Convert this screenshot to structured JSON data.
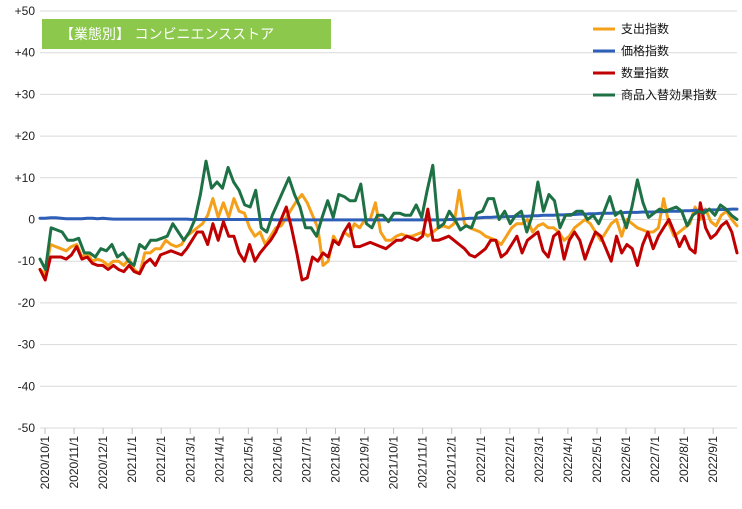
{
  "chart_data": {
    "type": "line",
    "title": "【業態別】 コンビニエンスストア",
    "ylim": [
      -50,
      50
    ],
    "ytick_labels": [
      "+50",
      "+40",
      "+30",
      "+20",
      "+10",
      "0",
      "-10",
      "-20",
      "-30",
      "-40",
      "-50"
    ],
    "ytick_values": [
      50,
      40,
      30,
      20,
      10,
      0,
      -10,
      -20,
      -30,
      -40,
      -50
    ],
    "xtick_labels": [
      "2020/10/1",
      "2020/11/1",
      "2020/12/1",
      "2021/1/1",
      "2021/2/1",
      "2021/3/1",
      "2021/4/1",
      "2021/5/1",
      "2021/6/1",
      "2021/7/1",
      "2021/8/1",
      "2021/9/1",
      "2021/10/1",
      "2021/11/1",
      "2021/12/1",
      "2022/1/1",
      "2022/2/1",
      "2022/3/1",
      "2022/4/1",
      "2022/5/1",
      "2022/6/1",
      "2022/7/1",
      "2022/8/1",
      "2022/9/1"
    ],
    "grid": true,
    "legend": "top-right",
    "series": [
      {
        "name": "支出指数",
        "color": "#f5a01a",
        "values": [
          -12,
          -13,
          -6,
          -6.5,
          -7,
          -7.5,
          -6.5,
          -6,
          -9,
          -8,
          -10,
          -9.5,
          -10,
          -11,
          -10,
          -10,
          -11,
          -9.5,
          -12,
          -13,
          -8,
          -8,
          -7,
          -7,
          -5,
          -6,
          -6.5,
          -6,
          -4,
          -3,
          -2,
          -1,
          1,
          5,
          0.5,
          4,
          0.5,
          5,
          2,
          1.5,
          -2,
          -4,
          -3,
          -6,
          -4,
          -2,
          -1.5,
          0.5,
          2.5,
          4.5,
          6,
          4,
          1,
          -2,
          -11,
          -10,
          -4,
          -6,
          -3,
          -4,
          -1,
          -2,
          0,
          0,
          4,
          -3,
          -5,
          -5,
          -4,
          -3.5,
          -4,
          -4,
          -3.5,
          -3,
          -4,
          -3,
          -2,
          -1.5,
          -2,
          -1,
          7,
          -1,
          -2,
          -2.5,
          -3,
          -4,
          -4.5,
          -5,
          -6,
          -4,
          -2,
          -1,
          -1,
          0,
          -3,
          -1.5,
          -1,
          -2,
          -2,
          -3,
          -5,
          -4,
          -2,
          -1,
          0,
          -1,
          -3,
          -5,
          -3,
          -1,
          0,
          -4,
          0,
          -1,
          -2,
          -2.5,
          -3,
          -3,
          -2,
          5,
          -1,
          -4,
          -3,
          -2,
          -1,
          3,
          0,
          2.5,
          -0.5,
          -1.5,
          1,
          2,
          0,
          -1.5
        ],
        "line_width": 3
      },
      {
        "name": "価格指数",
        "color": "#2e5fb8",
        "values": [
          0.3,
          0.3,
          0.4,
          0.4,
          0.3,
          0.2,
          0.2,
          0.2,
          0.2,
          0.3,
          0.3,
          0.2,
          0.3,
          0.2,
          0.1,
          0.1,
          0.1,
          0.1,
          0.1,
          0.1,
          0.1,
          0.1,
          0.1,
          0.1,
          0.1,
          0.1,
          0.1,
          0.1,
          0.1,
          0,
          0,
          0,
          0,
          0,
          0,
          0,
          0,
          0,
          0,
          0,
          0,
          0,
          0,
          0,
          0,
          -0.1,
          -0.1,
          -0.1,
          -0.1,
          -0.1,
          -0.1,
          -0.1,
          -0.1,
          -0.1,
          -0.1,
          -0.1,
          -0.1,
          -0.1,
          -0.1,
          -0.1,
          -0.1,
          -0.1,
          -0.1,
          -0.1,
          -0.1,
          -0.1,
          -0.1,
          -0.1,
          -0.1,
          -0.1,
          -0.1,
          -0.1,
          -0.1,
          -0.1,
          -0.1,
          -0.1,
          -0.1,
          -0.1,
          0,
          0,
          0.1,
          0.2,
          0.3,
          0.3,
          0.4,
          0.5,
          0.5,
          0.6,
          0.6,
          0.7,
          0.7,
          0.8,
          0.8,
          0.8,
          0.9,
          0.9,
          1,
          1,
          1,
          1.1,
          1.1,
          1.2,
          1.2,
          1.3,
          1.3,
          1.4,
          1.4,
          1.5,
          1.5,
          1.5,
          1.6,
          1.6,
          1.7,
          1.7,
          1.7,
          1.8,
          1.8,
          1.8,
          1.9,
          1.9,
          2,
          2,
          2,
          2.1,
          2.1,
          2.2,
          2.2,
          2.2,
          2.3,
          2.3,
          2.4,
          2.4,
          2.5,
          2.5
        ],
        "line_width": 3
      },
      {
        "name": "数量指数",
        "color": "#c00000",
        "values": [
          -12,
          -14.5,
          -9,
          -9,
          -9,
          -9.5,
          -8.5,
          -6.5,
          -9.5,
          -9,
          -10.5,
          -11,
          -11,
          -12,
          -11,
          -12,
          -12.5,
          -11,
          -12.5,
          -13,
          -10.5,
          -9.5,
          -11,
          -8.5,
          -8,
          -7.5,
          -8,
          -8.5,
          -7,
          -5,
          -3,
          -3,
          -6,
          -1,
          -5,
          -0.5,
          -4,
          -4,
          -8,
          -10,
          -6,
          -10,
          -8,
          -6.5,
          -5,
          -3,
          0,
          3,
          -2,
          -8,
          -14.5,
          -14,
          -9,
          -10,
          -8,
          -9,
          -5,
          -6,
          -3,
          -1,
          -6.5,
          -6.5,
          -6,
          -5.5,
          -6,
          -6.5,
          -7,
          -6,
          -5,
          -5,
          -4,
          -4.5,
          -5,
          -4,
          2.5,
          -5,
          -5,
          -4.5,
          -4,
          -5,
          -6,
          -7,
          -8.5,
          -9,
          -8,
          -7,
          -5,
          -5,
          -9,
          -8,
          -6,
          -4,
          -8,
          -5,
          -4,
          -3,
          -7.5,
          -9,
          -4,
          -3,
          -9.5,
          -5,
          -3,
          -5,
          -9.5,
          -6,
          -3,
          -4,
          -7,
          -10,
          -4,
          -8,
          -6,
          -7,
          -11,
          -6,
          -3,
          -7,
          -4,
          -2,
          0,
          -3,
          -6.5,
          -4,
          -7,
          -8,
          4,
          -2,
          -4.5,
          -3.5,
          -1.5,
          -0.5,
          -3,
          -8
        ],
        "line_width": 3
      },
      {
        "name": "商品入替効果指数",
        "color": "#1e7145",
        "values": [
          -9.5,
          -12,
          -2,
          -2.5,
          -3,
          -5,
          -5,
          -4.5,
          -8,
          -8,
          -9,
          -7,
          -7.5,
          -6,
          -9,
          -8,
          -10,
          -11,
          -6,
          -7,
          -5,
          -5,
          -4.5,
          -4,
          -1,
          -3,
          -5,
          -3,
          0,
          6,
          14,
          7.5,
          9,
          7.5,
          12.5,
          9,
          7,
          3.5,
          3,
          7,
          -2,
          -3,
          1,
          4,
          7,
          10,
          6,
          3,
          -2,
          -2,
          -4,
          0.5,
          4.5,
          0.5,
          6,
          5.5,
          4.5,
          4.5,
          8.5,
          -1,
          -2,
          1,
          1,
          -0.5,
          1.5,
          1.5,
          1,
          1,
          3.5,
          0.5,
          7,
          13,
          -2,
          -1,
          2,
          0,
          -2.5,
          -1.5,
          -2,
          1.5,
          2,
          5,
          5,
          0,
          2,
          -1,
          1,
          2,
          -3,
          1,
          9,
          2,
          6,
          4.5,
          -2,
          1,
          1,
          2,
          2,
          0,
          1,
          -1,
          2,
          5.5,
          1,
          2,
          -2,
          3,
          9.5,
          4,
          0.5,
          1.5,
          2.5,
          2,
          2.5,
          3,
          2,
          -1.5,
          1,
          2,
          1.5,
          2.5,
          1,
          3.5,
          2.5,
          1,
          0
        ],
        "line_width": 3
      }
    ]
  }
}
